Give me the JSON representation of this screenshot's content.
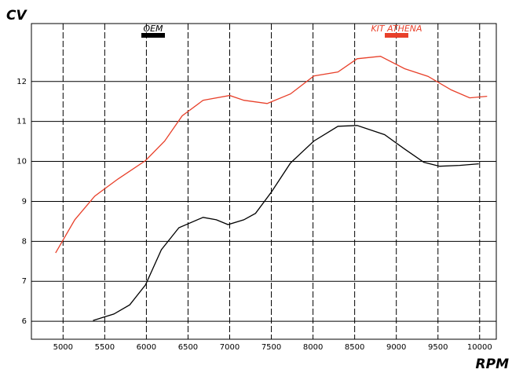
{
  "chart_data": {
    "type": "line",
    "ylabel": "CV",
    "xlabel": "RPM",
    "xlim": [
      4620,
      10200
    ],
    "xticks": [
      5000,
      5500,
      6000,
      6500,
      7000,
      7500,
      8000,
      8500,
      9000,
      9500,
      10000
    ],
    "ylim": [
      5.55,
      13.45
    ],
    "yticks": [
      6,
      7,
      8,
      9,
      10,
      11,
      12
    ],
    "grid": true,
    "series": [
      {
        "name": "OEM",
        "color": "#000000",
        "x": [
          5360,
          5610,
          5800,
          5990,
          6180,
          6390,
          6680,
          6840,
          6980,
          7170,
          7310,
          7500,
          7730,
          8010,
          8300,
          8530,
          8860,
          9100,
          9330,
          9520,
          9760,
          9990
        ],
        "values": [
          6.02,
          6.18,
          6.41,
          6.91,
          7.79,
          8.34,
          8.6,
          8.54,
          8.42,
          8.54,
          8.7,
          9.23,
          9.96,
          10.51,
          10.88,
          10.9,
          10.67,
          10.31,
          9.98,
          9.88,
          9.9,
          9.94
        ]
      },
      {
        "name": "KIT ATHENA",
        "color": "#e8402a",
        "x": [
          4910,
          5140,
          5380,
          5660,
          5990,
          6220,
          6430,
          6680,
          7000,
          7170,
          7450,
          7730,
          8010,
          8300,
          8530,
          8810,
          9100,
          9380,
          9660,
          9880,
          10090
        ],
        "values": [
          7.71,
          8.54,
          9.13,
          9.56,
          10.02,
          10.51,
          11.14,
          11.53,
          11.65,
          11.53,
          11.45,
          11.69,
          12.14,
          12.24,
          12.57,
          12.63,
          12.32,
          12.13,
          11.79,
          11.59,
          11.63
        ]
      }
    ]
  }
}
